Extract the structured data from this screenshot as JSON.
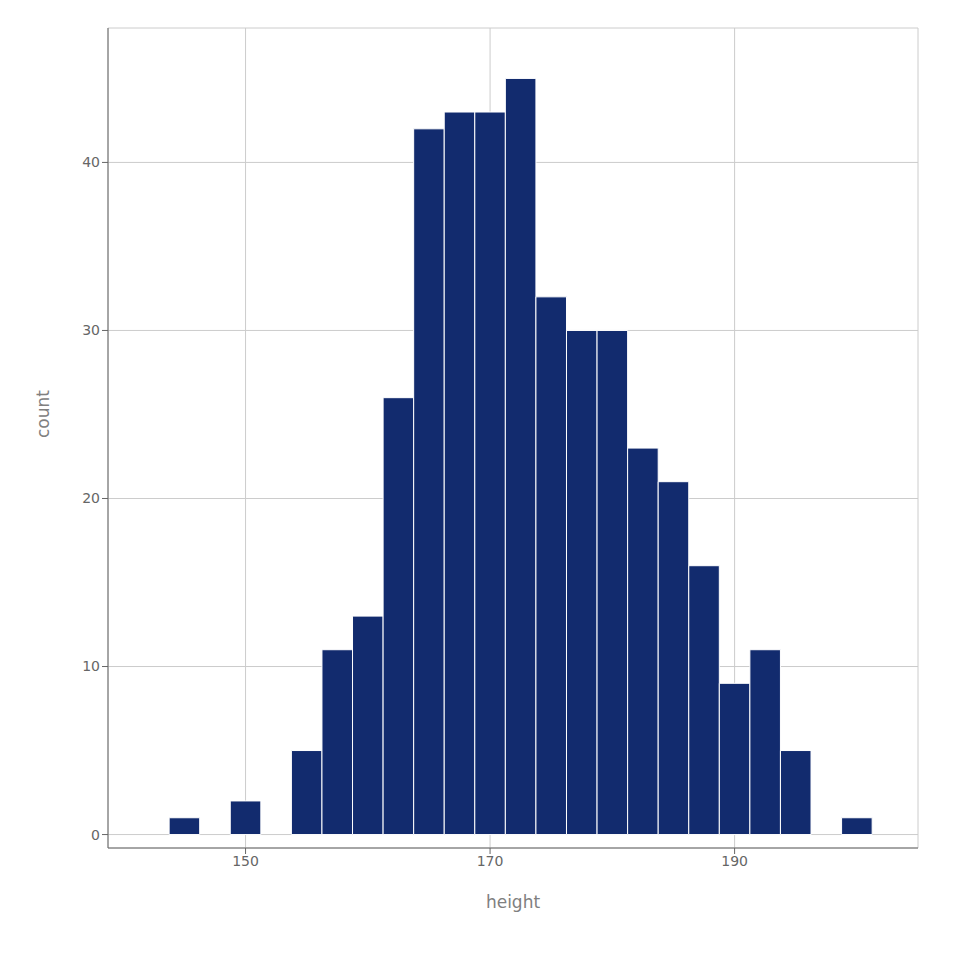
{
  "chart_data": {
    "type": "histogram",
    "xlabel": "height",
    "ylabel": "count",
    "bins": [
      143.75,
      146.25,
      148.75,
      151.25,
      153.75,
      156.25,
      158.75,
      161.25,
      163.75,
      166.25,
      168.75,
      171.25,
      173.75,
      176.25,
      178.75,
      181.25,
      183.75,
      186.25,
      188.75,
      191.25,
      193.75,
      196.25,
      198.75,
      201.25
    ],
    "values": [
      1,
      0,
      2,
      0,
      5,
      11,
      13,
      26,
      42,
      43,
      43,
      45,
      32,
      30,
      30,
      23,
      21,
      16,
      9,
      11,
      5,
      0,
      1
    ],
    "color": "#122b6e",
    "xlim": [
      138.75,
      205
    ],
    "ylim": [
      -0.8,
      48
    ],
    "xticks": [
      150,
      170,
      190
    ],
    "yticks": [
      0,
      10,
      20,
      30,
      40
    ],
    "grid": true
  }
}
